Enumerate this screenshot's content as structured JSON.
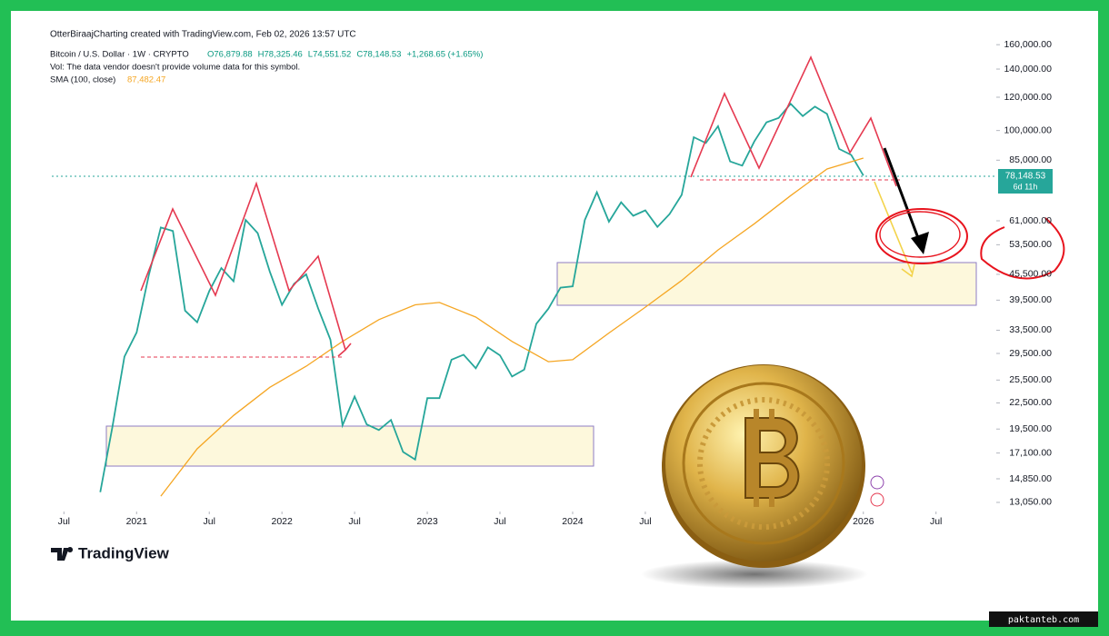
{
  "header": {
    "attribution": "OtterBiraajCharting created with TradingView.com, Feb 02, 2026 13:57 UTC"
  },
  "legend": {
    "symbol": "Bitcoin / U.S. Dollar · 1W · CRYPTO",
    "ohlc": [
      "O76,879.88",
      "H78,325.46",
      "L74,551.52",
      "C78,148.53",
      "+1,268.65 (+1.65%)"
    ],
    "volume_note": "Vol: The data vendor doesn't provide volume data for this symbol."
  },
  "chart_data": {
    "type": "line",
    "log_scale": true,
    "grid": false,
    "xlim": [
      "2020-06",
      "2026-11"
    ],
    "xticks": [
      {
        "value": "2020-07",
        "label": "Jul"
      },
      {
        "value": "2021-01",
        "label": "2021"
      },
      {
        "value": "2021-07",
        "label": "Jul"
      },
      {
        "value": "2022-01",
        "label": "2022"
      },
      {
        "value": "2022-07",
        "label": "Jul"
      },
      {
        "value": "2023-01",
        "label": "2023"
      },
      {
        "value": "2023-07",
        "label": "Jul"
      },
      {
        "value": "2024-01",
        "label": "2024"
      },
      {
        "value": "2024-07",
        "label": "Jul"
      },
      {
        "value": "2026-01",
        "label": "2026"
      },
      {
        "value": "2026-07",
        "label": "Jul"
      }
    ],
    "ylim": [
      12600,
      170000
    ],
    "yticks": [
      {
        "value": 160000,
        "label": "160,000.00"
      },
      {
        "value": 140000,
        "label": "140,000.00"
      },
      {
        "value": 120000,
        "label": "120,000.00"
      },
      {
        "value": 100000,
        "label": "100,000.00"
      },
      {
        "value": 85000,
        "label": "85,000.00"
      },
      {
        "value": 61000,
        "label": "61,000.00"
      },
      {
        "value": 53500,
        "label": "53,500.00"
      },
      {
        "value": 45500,
        "label": "45,500.00"
      },
      {
        "value": 39500,
        "label": "39,500.00"
      },
      {
        "value": 33500,
        "label": "33,500.00"
      },
      {
        "value": 29500,
        "label": "29,500.00"
      },
      {
        "value": 25500,
        "label": "25,500.00"
      },
      {
        "value": 22500,
        "label": "22,500.00"
      },
      {
        "value": 19500,
        "label": "19,500.00"
      },
      {
        "value": 17100,
        "label": "17,100.00"
      },
      {
        "value": 14850,
        "label": "14,850.00"
      },
      {
        "value": 13050,
        "label": "13,050.00"
      }
    ],
    "series": [
      {
        "name": "Bitcoin / U.S. Dollar",
        "color": "#26a69a",
        "current_label": "78,148.53",
        "countdown": "6d 11h",
        "x": [
          "2020-10",
          "2020-11",
          "2020-12",
          "2021-01",
          "2021-02",
          "2021-03",
          "2021-04",
          "2021-05",
          "2021-06",
          "2021-07",
          "2021-08",
          "2021-09",
          "2021-10",
          "2021-11",
          "2021-12",
          "2022-01",
          "2022-02",
          "2022-03",
          "2022-04",
          "2022-05",
          "2022-06",
          "2022-07",
          "2022-08",
          "2022-09",
          "2022-10",
          "2022-11",
          "2022-12",
          "2023-01",
          "2023-02",
          "2023-03",
          "2023-04",
          "2023-05",
          "2023-06",
          "2023-07",
          "2023-08",
          "2023-09",
          "2023-10",
          "2023-11",
          "2023-12",
          "2024-01",
          "2024-02",
          "2024-03",
          "2024-04",
          "2024-05",
          "2024-06",
          "2024-07",
          "2024-08",
          "2024-09",
          "2024-10",
          "2024-11",
          "2024-12",
          "2025-01",
          "2025-02",
          "2025-03",
          "2025-04",
          "2025-05",
          "2025-06",
          "2025-07",
          "2025-08",
          "2025-09",
          "2025-10",
          "2025-11",
          "2025-12",
          "2026-01"
        ],
        "values": [
          13800,
          19700,
          29000,
          33100,
          45200,
          58800,
          57700,
          37300,
          35000,
          41500,
          47100,
          43800,
          61300,
          57000,
          46200,
          38500,
          43200,
          45500,
          37700,
          31800,
          19900,
          23300,
          20000,
          19400,
          20500,
          17200,
          16500,
          23100,
          23100,
          28500,
          29300,
          27200,
          30500,
          29200,
          26000,
          27000,
          34700,
          37700,
          42300,
          42600,
          61200,
          71300,
          60700,
          67500,
          62700,
          64600,
          59000,
          63300,
          70300,
          96400,
          93400,
          102400,
          84400,
          82500,
          94200,
          104600,
          107100,
          115800,
          108200,
          114000,
          109500,
          90400,
          87500,
          78148.53
        ]
      },
      {
        "name": "SMA (100, close)",
        "color": "#f5a623",
        "current_label": "87,482.47",
        "x": [
          "2021-03",
          "2021-06",
          "2021-09",
          "2021-12",
          "2022-03",
          "2022-06",
          "2022-09",
          "2022-12",
          "2023-02",
          "2023-05",
          "2023-08",
          "2023-11",
          "2024-01",
          "2024-04",
          "2024-07",
          "2024-10",
          "2025-01",
          "2025-04",
          "2025-07",
          "2025-10",
          "2026-01"
        ],
        "values": [
          13500,
          17500,
          21000,
          24500,
          27500,
          31500,
          35500,
          38500,
          39000,
          36000,
          31500,
          28200,
          28500,
          33000,
          38000,
          44000,
          52000,
          60000,
          70000,
          81000,
          86000
        ]
      }
    ]
  },
  "brand": "TradingView",
  "watermark": "paktanteb.com"
}
